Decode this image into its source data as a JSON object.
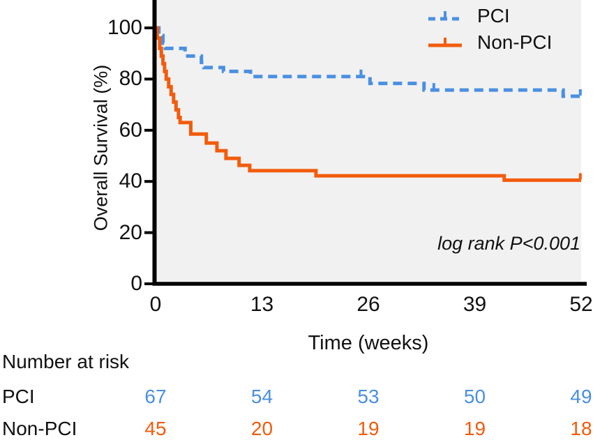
{
  "chart_data": {
    "type": "line",
    "subtype": "kaplan-meier-step",
    "title": "",
    "xlabel": "Time (weeks)",
    "ylabel": "Overall Survival (%)",
    "xlim": [
      0,
      52
    ],
    "ylim": [
      0,
      100
    ],
    "x_ticks": [
      "0",
      "13",
      "26",
      "39",
      "52"
    ],
    "x_tick_values": [
      0,
      13,
      26,
      39,
      52
    ],
    "y_ticks": [
      "0",
      "20",
      "40",
      "60",
      "80",
      "100"
    ],
    "y_tick_values": [
      0,
      20,
      40,
      60,
      80,
      100
    ],
    "grid": "off",
    "plot_background": "#f1f1f2",
    "axis_color": "#000000",
    "legend_position": "top-right",
    "annotation": "log rank P<0.001",
    "series": [
      {
        "name": "PCI",
        "color": "#4a90e2",
        "style": "dashed",
        "points": [
          [
            0,
            100
          ],
          [
            0.4,
            97
          ],
          [
            0.9,
            94
          ],
          [
            1.2,
            92
          ],
          [
            3.4,
            92
          ],
          [
            3.6,
            89
          ],
          [
            5.4,
            89
          ],
          [
            5.6,
            86.5
          ],
          [
            5.9,
            84.5
          ],
          [
            8.1,
            84.5
          ],
          [
            8.3,
            83
          ],
          [
            11.4,
            83
          ],
          [
            11.6,
            81
          ],
          [
            25.9,
            81
          ],
          [
            26.2,
            78.3
          ],
          [
            32.5,
            78.3
          ],
          [
            32.8,
            75.7
          ],
          [
            49.5,
            75.7
          ],
          [
            49.8,
            73.3
          ],
          [
            52,
            73.3
          ]
        ],
        "censor_ticks": [
          [
            25.1,
            81
          ],
          [
            34,
            75.7
          ],
          [
            51.9,
            73.3
          ]
        ]
      },
      {
        "name": "Non-PCI",
        "color": "#f25c0c",
        "style": "solid",
        "points": [
          [
            0,
            100
          ],
          [
            0.2,
            96
          ],
          [
            0.5,
            92
          ],
          [
            0.7,
            89
          ],
          [
            0.9,
            86
          ],
          [
            1.1,
            83
          ],
          [
            1.3,
            80
          ],
          [
            1.6,
            77
          ],
          [
            1.9,
            74
          ],
          [
            2.2,
            71
          ],
          [
            2.5,
            68
          ],
          [
            2.8,
            65
          ],
          [
            3.0,
            63
          ],
          [
            4.1,
            63
          ],
          [
            4.3,
            58.5
          ],
          [
            6.0,
            58.5
          ],
          [
            6.2,
            55
          ],
          [
            7.3,
            55
          ],
          [
            7.5,
            52
          ],
          [
            8.4,
            52
          ],
          [
            8.6,
            49
          ],
          [
            10.0,
            49
          ],
          [
            10.2,
            46.3
          ],
          [
            11.3,
            46.3
          ],
          [
            11.5,
            44.2
          ],
          [
            19.4,
            44.2
          ],
          [
            19.6,
            42.2
          ],
          [
            42.4,
            42.2
          ],
          [
            42.6,
            40.5
          ],
          [
            52,
            40.5
          ]
        ],
        "censor_ticks": [
          [
            51.9,
            40.5
          ]
        ]
      }
    ]
  },
  "legend": {
    "items": [
      {
        "label": "PCI"
      },
      {
        "label": "Non-PCI"
      }
    ]
  },
  "risk_table": {
    "title": "Number at risk",
    "timepoints": [
      0,
      13,
      26,
      39,
      52
    ],
    "rows": [
      {
        "label": "PCI",
        "color": "#4a90e2",
        "values": [
          "67",
          "54",
          "53",
          "50",
          "49"
        ]
      },
      {
        "label": "Non-PCI",
        "color": "#f25c0c",
        "values": [
          "45",
          "20",
          "19",
          "19",
          "18"
        ]
      }
    ]
  }
}
